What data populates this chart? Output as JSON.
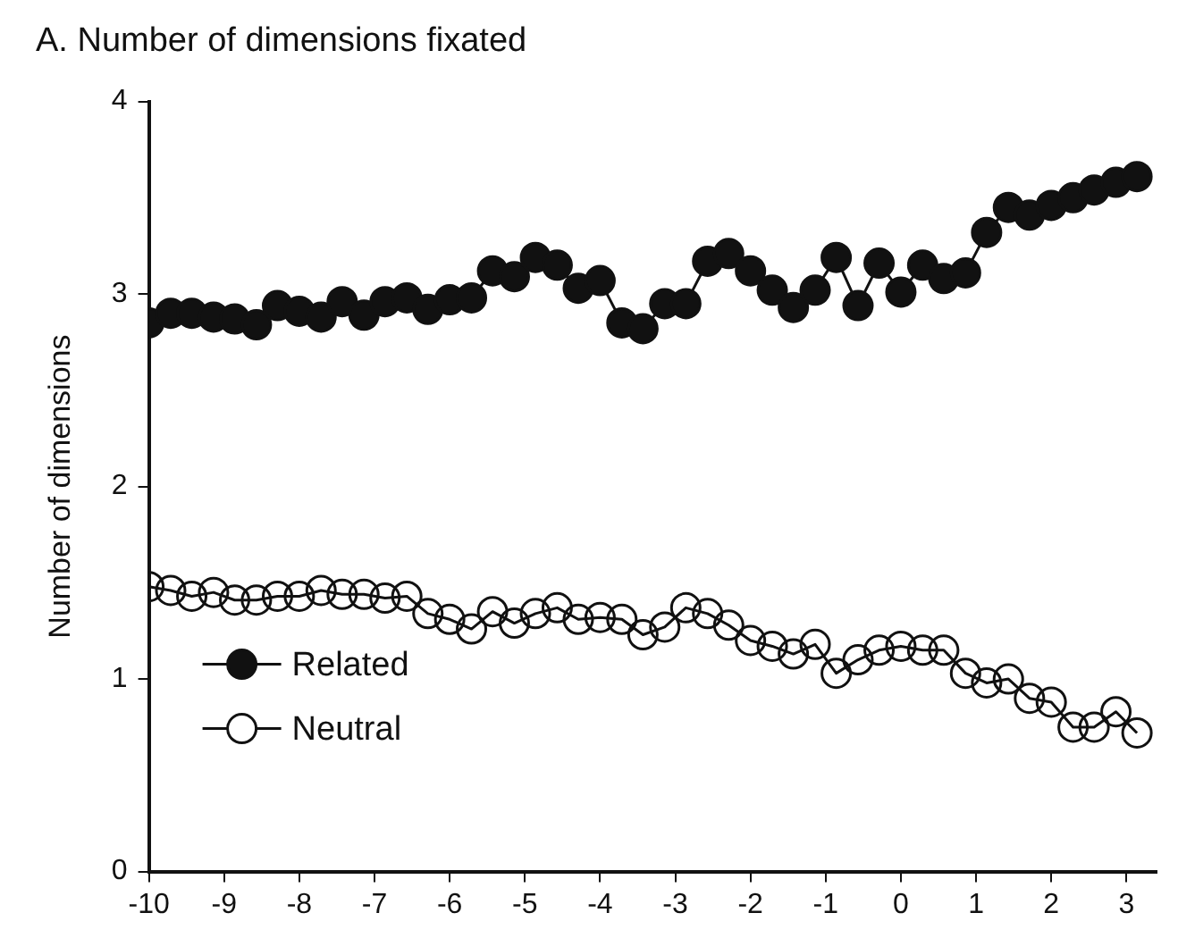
{
  "chart_data": {
    "type": "line",
    "title": "A. Number of dimensions fixated",
    "ylabel": "Number of dimensions",
    "x": [
      -10,
      -9.71,
      -9.43,
      -9.14,
      -8.86,
      -8.57,
      -8.29,
      -8,
      -7.71,
      -7.43,
      -7.14,
      -6.86,
      -6.57,
      -6.29,
      -6,
      -5.71,
      -5.43,
      -5.14,
      -4.86,
      -4.57,
      -4.29,
      -4,
      -3.71,
      -3.43,
      -3.14,
      -2.86,
      -2.57,
      -2.29,
      -2,
      -1.71,
      -1.43,
      -1.14,
      -0.86,
      -0.57,
      -0.29,
      0,
      0.29,
      0.57,
      0.86,
      1.14,
      1.43,
      1.71,
      2,
      2.29,
      2.57,
      2.86,
      3.14
    ],
    "series": [
      {
        "name": "Related",
        "color": "#111111",
        "values": [
          2.85,
          2.9,
          2.9,
          2.88,
          2.87,
          2.84,
          2.94,
          2.91,
          2.88,
          2.96,
          2.89,
          2.96,
          2.98,
          2.92,
          2.97,
          2.98,
          3.12,
          3.09,
          3.19,
          3.15,
          3.03,
          3.07,
          2.85,
          2.82,
          2.95,
          2.95,
          3.17,
          3.21,
          3.12,
          3.02,
          2.93,
          3.02,
          3.19,
          2.94,
          3.16,
          3.01,
          3.15,
          3.08,
          3.11,
          3.32,
          3.45,
          3.41,
          3.46,
          3.5,
          3.54,
          3.58,
          3.61
        ]
      },
      {
        "name": "Neutral",
        "color": "#111111",
        "values": [
          1.48,
          1.46,
          1.43,
          1.45,
          1.41,
          1.41,
          1.43,
          1.43,
          1.46,
          1.44,
          1.44,
          1.42,
          1.43,
          1.34,
          1.31,
          1.26,
          1.35,
          1.29,
          1.34,
          1.37,
          1.31,
          1.32,
          1.31,
          1.23,
          1.27,
          1.37,
          1.34,
          1.28,
          1.2,
          1.17,
          1.13,
          1.18,
          1.03,
          1.1,
          1.15,
          1.17,
          1.15,
          1.15,
          1.03,
          0.98,
          1,
          0.9,
          0.88,
          0.75,
          0.75,
          0.83,
          0.72
        ]
      }
    ],
    "xlim": [
      -10,
      3.4
    ],
    "xticks": [
      -10,
      -9,
      -8,
      -7,
      -6,
      -5,
      -4,
      -3,
      -2,
      -1,
      0,
      1,
      2,
      3
    ],
    "ylim": [
      0,
      4
    ],
    "yticks": [
      0,
      1,
      2,
      3,
      4
    ],
    "grid": false,
    "legend": "bottom left",
    "marker": "circle",
    "line_style": "solid"
  }
}
